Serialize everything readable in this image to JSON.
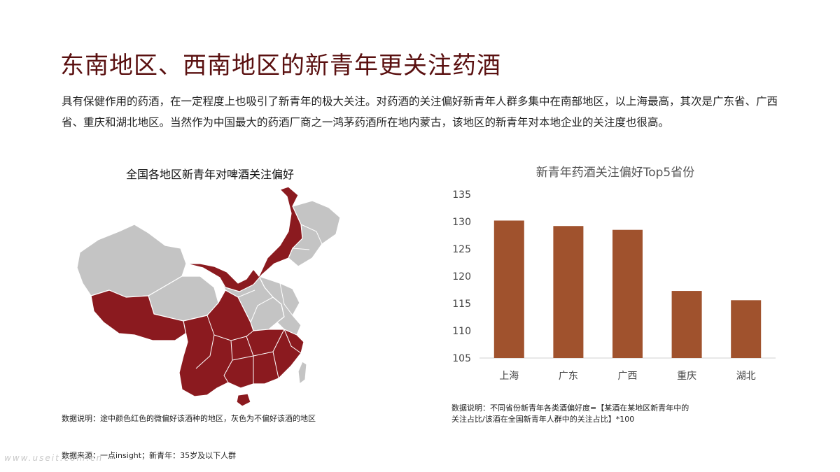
{
  "page": {
    "title": "东南地区、西南地区的新青年更关注药酒",
    "intro": "具有保健作用的药酒，在一定程度上也吸引了新青年的极大关注。对药酒的关注偏好新青年人群多集中在南部地区，以上海最高，其次是广东省、广西省、重庆和湖北地区。当然作为中国最大的药酒厂商之一鸿茅药酒所在地内蒙古，该地区的新青年对本地企业的关注度也很高。",
    "source": "数据来源：一点insight；新青年：35岁及以下人群",
    "watermark": "www.useit.com.cn"
  },
  "map": {
    "title": "全国各地区新青年对啤酒关注偏好",
    "note": "数据说明：途中颜色红色的微偏好该酒种的地区，灰色为不偏好该酒的地区",
    "colors": {
      "preferred": "#8b1a1f",
      "not_preferred": "#c4c4c4",
      "border": "#ffffff"
    }
  },
  "chart_data": {
    "type": "bar",
    "title": "新青年药酒关注偏好Top5省份",
    "categories": [
      "上海",
      "广东",
      "广西",
      "重庆",
      "湖北"
    ],
    "values": [
      130.2,
      129.2,
      128.5,
      117.3,
      115.6
    ],
    "ylim": [
      105,
      135
    ],
    "yticks": [
      105,
      110,
      115,
      120,
      125,
      130,
      135
    ],
    "grid": false,
    "bar_color": "#a0522d",
    "note": "数据说明：不同省份新青年各类酒偏好度=【某酒在某地区新青年中的关注占比/该酒在全国新青年人群中的关注占比】*100"
  }
}
